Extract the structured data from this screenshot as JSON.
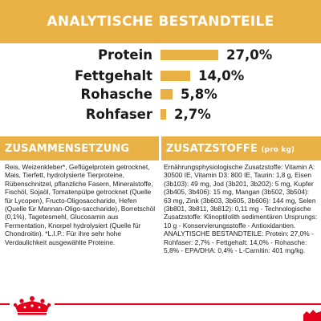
{
  "header": {
    "title": "ANALYTISCHE BESTANDTEILE"
  },
  "analysis": [
    {
      "label": "Protein",
      "value": "27,0%",
      "percent": 27.0
    },
    {
      "label": "Fettgehalt",
      "value": "14,0%",
      "percent": 14.0
    },
    {
      "label": "Rohasche",
      "value": "5,8%",
      "percent": 5.8
    },
    {
      "label": "Rohfaser",
      "value": "2,7%",
      "percent": 2.7
    }
  ],
  "composition": {
    "title": "ZUSAMMENSETZUNG",
    "text": "Reis, Weizenkleber*, Geflügelprotein getrocknet, Mais, Tierfett, hydrolysierte Tierproteine, Rübenschnitzel, pflanzliche Fasern, Mineralstoffe, Fischöl, Sojaöl, Tomatenpülpe getrocknet (Quelle für Lycopen), Fructo-Oligosaccharide, Hefen (Quelle für Mannan-Oligo-saccharide), Borretschöl (0,1%), Tagetesmehl, Glucosamin aus Fermentation, Knorpel hydrolysiert (Quelle für Chondroitin). *L.I.P.: Für ihre sehr hohe Verdaulichkeit ausgewählte Proteine."
  },
  "additives": {
    "title": "ZUSATZSTOFFE",
    "unit": "(pro kg)",
    "text": "Ernährungsphysiologische Zusatzstoffe: Vitamin A: 30500 IE, Vitamin D3: 800 IE, Taurin: 1,8 g, Eisen (3b103): 49 mg, Jod (3b201, 3b202): 5 mg, Kupfer (3b405, 3b406): 15 mg, Mangan (3b502, 3b504): 63 mg, Zink (3b603, 3b605, 3b606): 144 mg, Selen (3b801, 3b811, 3b812): 0,11 mg - Technologische Zusatzstoffe: Klinoptilolith sedimentären Ursprungs: 10 g - Konservierungsstoffe - Antioxidantien. ANALYTISCHE BESTANDTEILE: Protein: 27,0% - Rohfaser: 2,7% - Fettgehalt: 14,0% - Rohasche: 5,8% - EPA/DHA: 0,4% - L-Carnitin: 401 mg/kg."
  },
  "colors": {
    "accent": "#e9b045",
    "brand_red": "#e2001a",
    "text": "#1a1a1a"
  },
  "icons": {
    "logo": "royal-canin-crown-logo",
    "corner": "crown-corner-icon"
  }
}
